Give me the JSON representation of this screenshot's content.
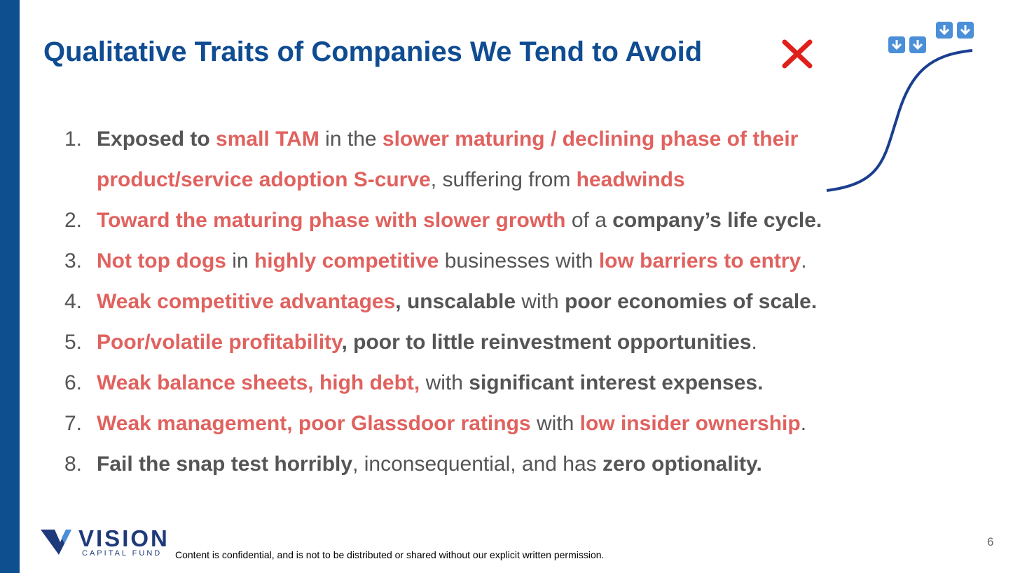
{
  "header": {
    "title": "Qualitative Traits of Companies We Tend to Avoid"
  },
  "items": [
    {
      "marker": "1.",
      "segments": [
        {
          "text": "Exposed to ",
          "color": "#555555",
          "bold": true
        },
        {
          "text": "small TAM",
          "color": "#e0625f",
          "bold": true
        },
        {
          "text": " in the ",
          "color": "#555555",
          "bold": false
        },
        {
          "text": "slower maturing / declining phase of their product/service adoption S-curve",
          "color": "#e0625f",
          "bold": true
        },
        {
          "text": ", suffering from ",
          "color": "#555555",
          "bold": false
        },
        {
          "text": "headwinds",
          "color": "#e0625f",
          "bold": true
        }
      ]
    },
    {
      "marker": "2.",
      "segments": [
        {
          "text": "Toward the maturing phase with slower growth",
          "color": "#e0625f",
          "bold": true
        },
        {
          "text": " of a ",
          "color": "#555555",
          "bold": false
        },
        {
          "text": "company’s life cycle.",
          "color": "#555555",
          "bold": true
        }
      ]
    },
    {
      "marker": "3.",
      "segments": [
        {
          "text": "Not top dogs",
          "color": "#e0625f",
          "bold": true
        },
        {
          "text": " in ",
          "color": "#555555",
          "bold": false
        },
        {
          "text": "highly competitive",
          "color": "#e0625f",
          "bold": true
        },
        {
          "text": " businesses with ",
          "color": "#555555",
          "bold": false
        },
        {
          "text": "low barriers to entry",
          "color": "#e0625f",
          "bold": true
        },
        {
          "text": ".",
          "color": "#555555",
          "bold": false
        }
      ]
    },
    {
      "marker": "4.",
      "segments": [
        {
          "text": "Weak competitive advantages",
          "color": "#e0625f",
          "bold": true
        },
        {
          "text": ", unscalable",
          "color": "#555555",
          "bold": true
        },
        {
          "text": " with ",
          "color": "#555555",
          "bold": false
        },
        {
          "text": "poor economies of scale.",
          "color": "#555555",
          "bold": true
        }
      ]
    },
    {
      "marker": "5.",
      "segments": [
        {
          "text": "Poor/volatile profitability",
          "color": "#e0625f",
          "bold": true
        },
        {
          "text": ", poor to little reinvestment opportunities",
          "color": "#555555",
          "bold": true
        },
        {
          "text": ".",
          "color": "#555555",
          "bold": false
        }
      ]
    },
    {
      "marker": "6.",
      "segments": [
        {
          "text": "Weak balance sheets, high debt,",
          "color": "#e0625f",
          "bold": true
        },
        {
          "text": " with ",
          "color": "#555555",
          "bold": false
        },
        {
          "text": "significant interest expenses.",
          "color": "#555555",
          "bold": true
        }
      ]
    },
    {
      "marker": "7.",
      "segments": [
        {
          "text": "Weak management, poor Glassdoor ratings",
          "color": "#e0625f",
          "bold": true
        },
        {
          "text": " with ",
          "color": "#555555",
          "bold": false
        },
        {
          "text": "low insider ownership",
          "color": "#e0625f",
          "bold": true
        },
        {
          "text": ".",
          "color": "#555555",
          "bold": false
        }
      ]
    },
    {
      "marker": "8.",
      "segments": [
        {
          "text": "Fail the snap test horribly",
          "color": "#555555",
          "bold": true
        },
        {
          "text": ", inconsequential, and has ",
          "color": "#555555",
          "bold": false
        },
        {
          "text": "zero optionality.",
          "color": "#555555",
          "bold": true
        }
      ]
    }
  ],
  "footer": {
    "logo_name": "VISION",
    "logo_sub": "CAPITAL FUND",
    "disclaimer": "Content is confidential, and is not to be distributed or shared without our explicit written permission.",
    "page_number": "6"
  }
}
